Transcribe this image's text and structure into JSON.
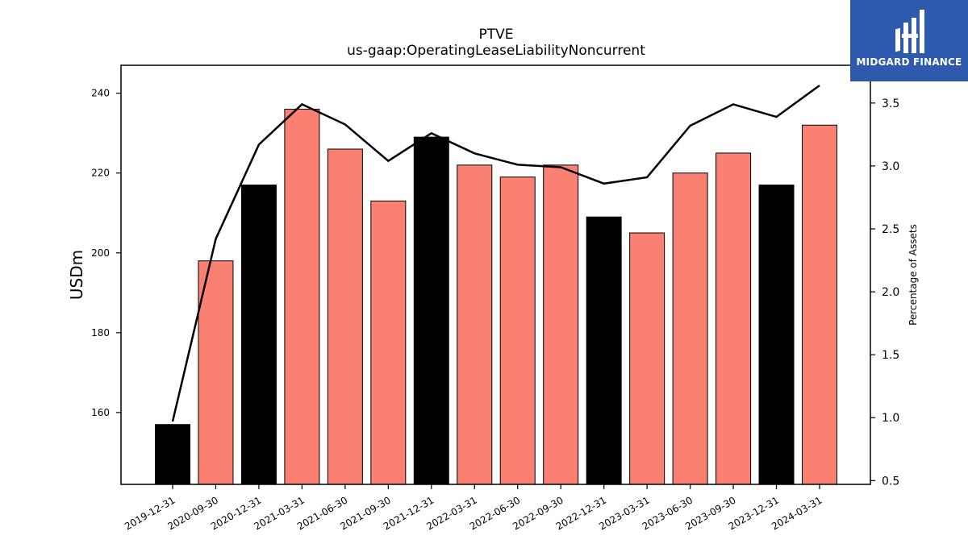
{
  "chart_data": {
    "type": "bar",
    "title": "PTVE",
    "subtitle": "us-gaap:OperatingLeaseLiabilityNoncurrent",
    "ylabel": "USDm",
    "y2label": "Percentage of Assets",
    "categories": [
      "2019-12-31",
      "2020-09-30",
      "2020-12-31",
      "2021-03-31",
      "2021-06-30",
      "2021-09-30",
      "2021-12-31",
      "2022-03-31",
      "2022-06-30",
      "2022-09-30",
      "2022-12-31",
      "2023-03-31",
      "2023-06-30",
      "2023-09-30",
      "2023-12-31",
      "2024-03-31"
    ],
    "values": [
      157,
      198,
      217,
      236,
      226,
      213,
      229,
      222,
      219,
      222,
      209,
      205,
      220,
      225,
      217,
      232
    ],
    "bar_colors": [
      "#000000",
      "#fa8072",
      "#000000",
      "#fa8072",
      "#fa8072",
      "#fa8072",
      "#000000",
      "#fa8072",
      "#fa8072",
      "#fa8072",
      "#000000",
      "#fa8072",
      "#fa8072",
      "#fa8072",
      "#000000",
      "#fa8072"
    ],
    "line_values": [
      0.97,
      2.42,
      3.17,
      3.49,
      3.33,
      3.04,
      3.26,
      3.1,
      3.01,
      2.99,
      2.86,
      2.91,
      3.32,
      3.49,
      3.39,
      3.64
    ],
    "line_color": "#000000",
    "ylim": [
      142,
      247
    ],
    "y2lim": [
      0.47,
      3.8
    ],
    "yticks": [
      160,
      180,
      200,
      220,
      240
    ],
    "y2ticks": [
      0.5,
      1.0,
      1.5,
      2.0,
      2.5,
      3.0,
      3.5
    ],
    "grid": false
  },
  "logo": {
    "text": "MIDGARD FINANCE"
  }
}
